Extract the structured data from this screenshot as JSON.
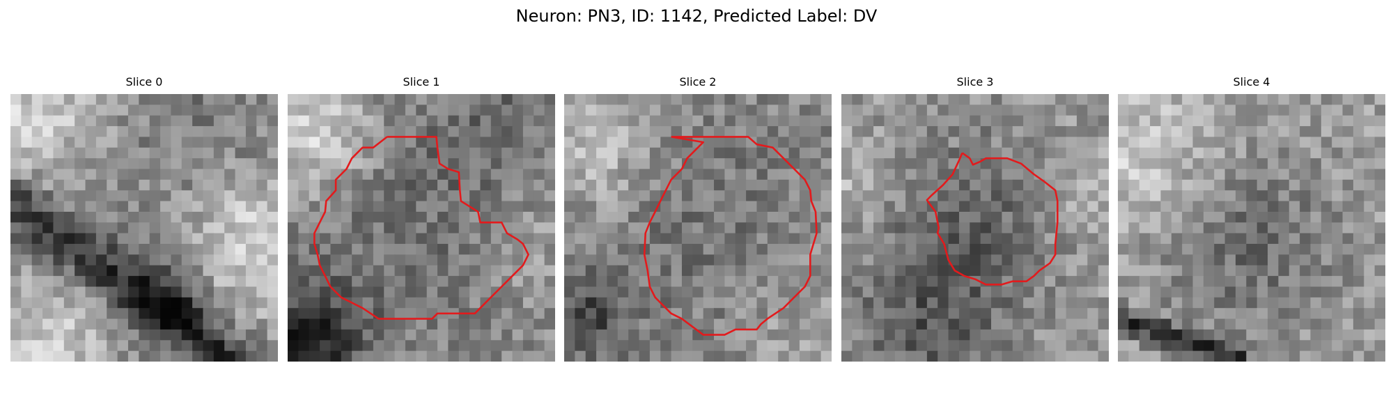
{
  "figure": {
    "title": "Neuron: PN3, ID: 1142, Predicted Label: DV"
  },
  "panels": [
    {
      "title": "Slice 0",
      "has_contour": false
    },
    {
      "title": "Slice 1",
      "has_contour": true
    },
    {
      "title": "Slice 2",
      "has_contour": true
    },
    {
      "title": "Slice 3",
      "has_contour": true
    },
    {
      "title": "Slice 4",
      "has_contour": false
    }
  ],
  "colors": {
    "contour": "#e31a1c",
    "background": "#ffffff",
    "text": "#000000"
  }
}
